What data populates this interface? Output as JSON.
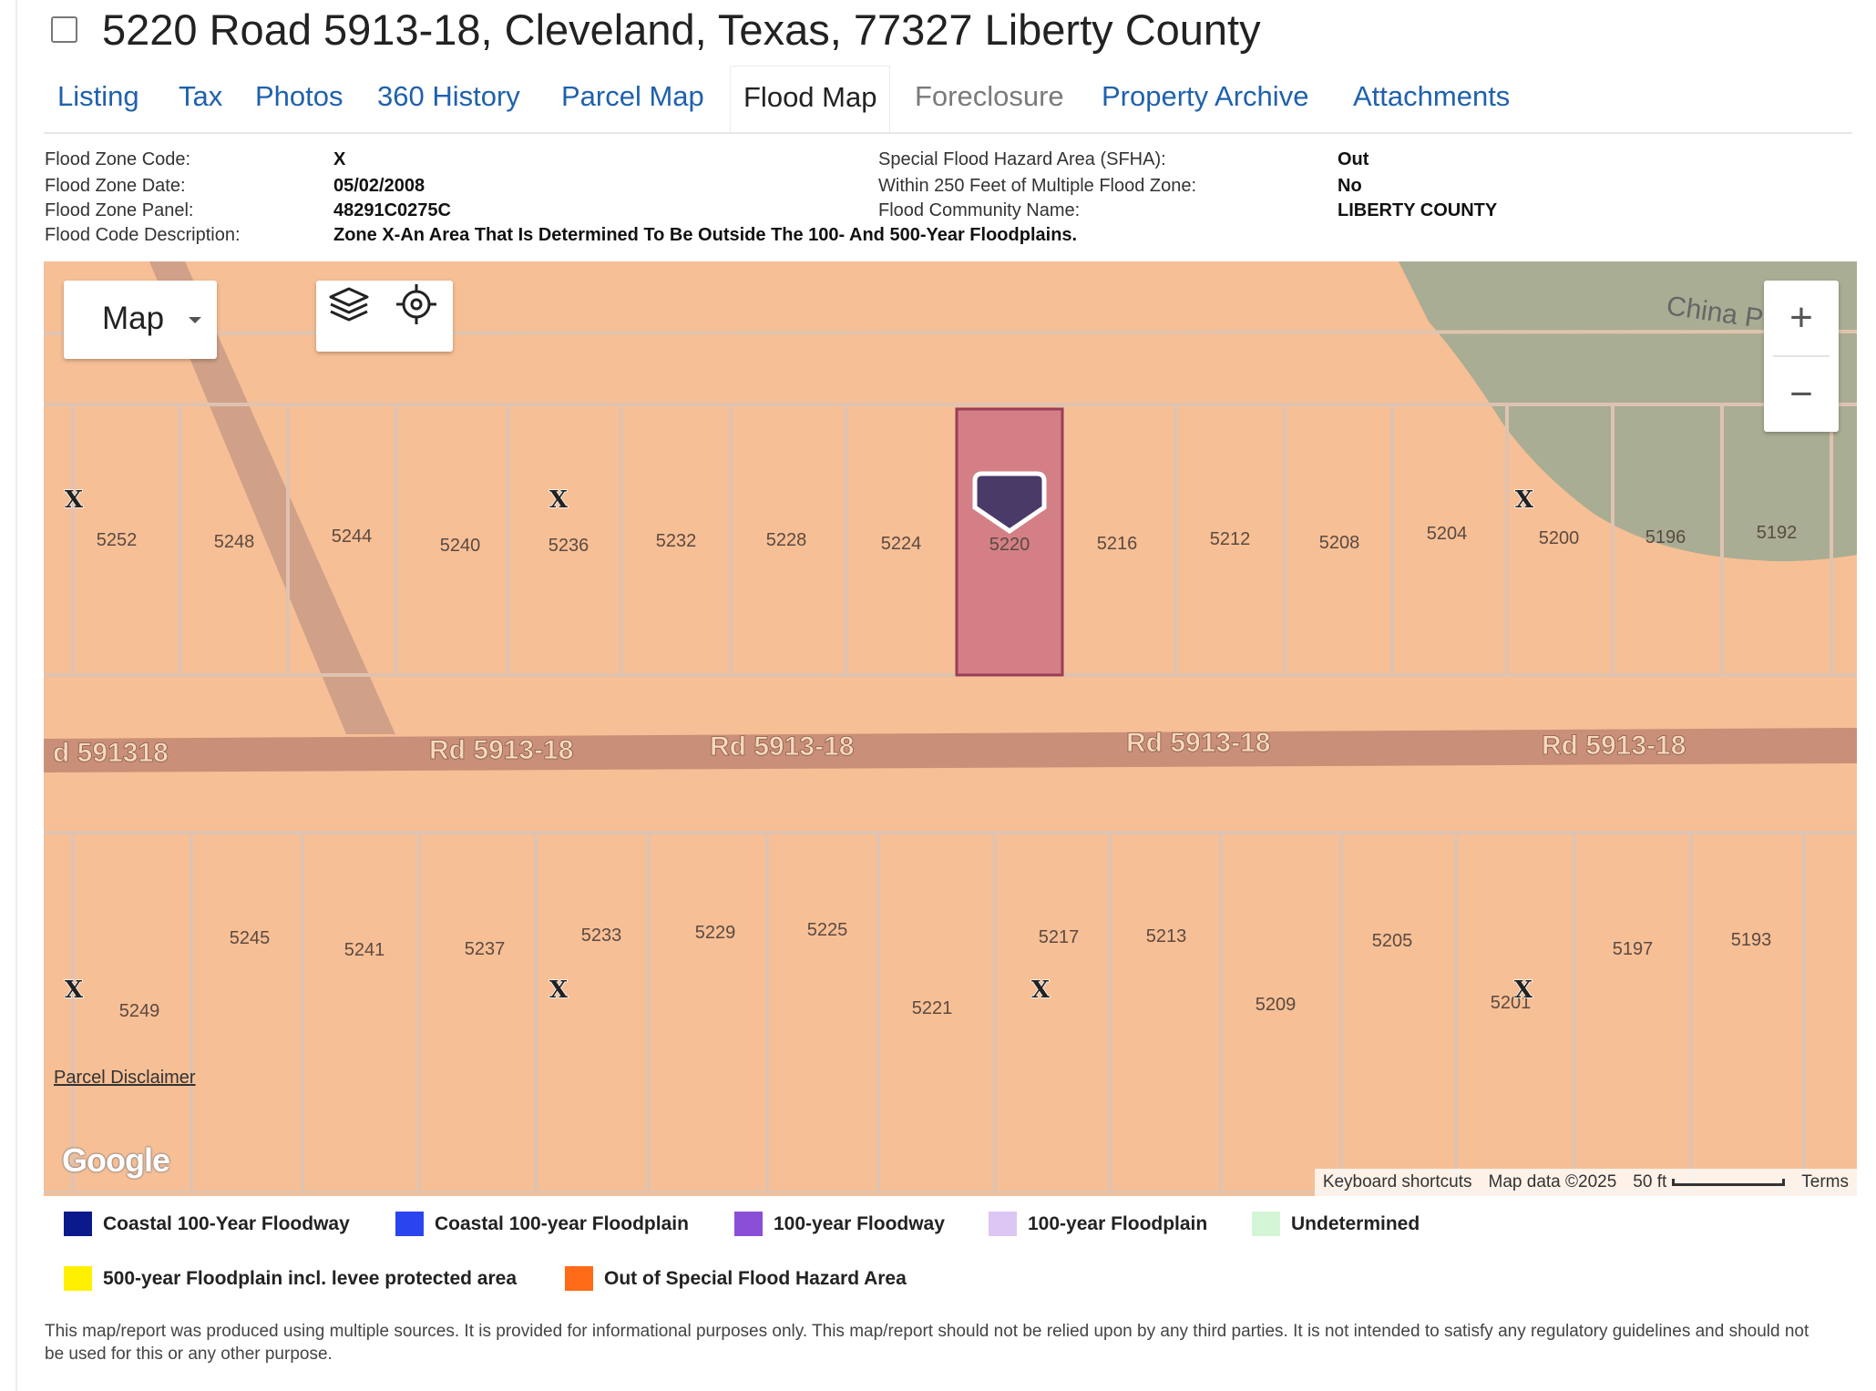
{
  "header": {
    "title": "5220 Road 5913-18, Cleveland, Texas, 77327 Liberty County"
  },
  "tabs": [
    "Listing",
    "Tax",
    "Photos",
    "360 History",
    "Parcel Map",
    "Flood Map",
    "Foreclosure",
    "Property Archive",
    "Attachments"
  ],
  "active_tab": "Flood Map",
  "flood_info": {
    "zone_code_label": "Flood Zone Code:",
    "zone_code": "X",
    "zone_date_label": "Flood Zone Date:",
    "zone_date": "05/02/2008",
    "zone_panel_label": "Flood Zone Panel:",
    "zone_panel": "48291C0275C",
    "code_desc_label": "Flood Code Description:",
    "code_desc": "Zone X-An Area That Is Determined To Be Outside The 100- And 500-Year Floodplains.",
    "sfha_label": "Special Flood Hazard Area (SFHA):",
    "sfha": "Out",
    "within250_label": "Within 250 Feet of Multiple Flood Zone:",
    "within250": "No",
    "community_label": "Flood Community Name:",
    "community": "LIBERTY COUNTY"
  },
  "map": {
    "map_type": "Map",
    "zoom_in": "+",
    "zoom_out": "−",
    "road_labels": [
      "d 591318",
      "Rd 5913-18",
      "Rd 5913-18",
      "Rd 5913-18",
      "Rd 5913-18"
    ],
    "area_label": "China P",
    "parcels_north": [
      "5252",
      "5248",
      "5244",
      "5240",
      "5236",
      "5232",
      "5228",
      "5224",
      "5220",
      "5216",
      "5212",
      "5208",
      "5204",
      "5200",
      "5196",
      "5192"
    ],
    "parcels_south": [
      "5249",
      "5245",
      "5241",
      "5237",
      "5233",
      "5229",
      "5225",
      "5221",
      "5217",
      "5213",
      "5209",
      "5205",
      "5201",
      "5197",
      "5193"
    ],
    "zone_marker": "X",
    "selected_parcel": "5220",
    "parcel_disclaimer": "Parcel Disclaimer",
    "google_logo": "Google",
    "keyboard_shortcuts": "Keyboard shortcuts",
    "map_data": "Map data ©2025",
    "scale": "50 ft",
    "terms": "Terms",
    "colors": {
      "base": "#f7bf95",
      "road": "#c98f78",
      "selected": "#d47f86",
      "pin": "#4a3a68",
      "green_area": "#a9ad93"
    }
  },
  "legend": [
    {
      "label": "Coastal 100-Year Floodway",
      "color": "#0a1a8c"
    },
    {
      "label": "Coastal 100-year Floodplain",
      "color": "#2a45f0"
    },
    {
      "label": "100-year Floodway",
      "color": "#8a4fd6"
    },
    {
      "label": "100-year Floodplain",
      "color": "#dcc6f3"
    },
    {
      "label": "Undetermined",
      "color": "#d3f5d5"
    },
    {
      "label": "500-year Floodplain incl. levee protected area",
      "color": "#fff000"
    },
    {
      "label": "Out of Special Flood Hazard Area",
      "color": "#ff6a16"
    }
  ],
  "footer": {
    "text": "This map/report was produced using multiple sources. It is provided for informational purposes only. This map/report should not be relied upon by any third parties. It is not intended to satisfy any regulatory guidelines and should not be used for this or any other purpose."
  }
}
